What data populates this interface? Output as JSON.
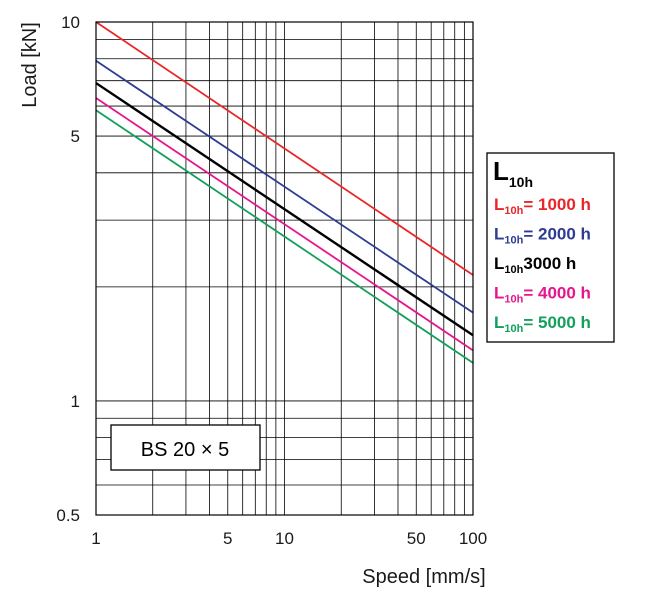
{
  "chart_data": {
    "type": "line",
    "xlabel": "Speed [mm/s]",
    "ylabel": "Load [kN]",
    "x_scale": "log",
    "y_scale": "log",
    "xlim": [
      1,
      100
    ],
    "ylim": [
      0.5,
      10
    ],
    "x_ticks": [
      "1",
      "5",
      "10",
      "50",
      "100"
    ],
    "y_ticks": [
      "10",
      "5",
      "1",
      "0.5"
    ],
    "grid": true,
    "model_label": "BS 20 × 5",
    "legend": {
      "title_main": "L",
      "title_sub": "10h",
      "placement": "right",
      "entries": [
        {
          "sub": "10h",
          "text": "= 1000 h"
        },
        {
          "sub": "10h",
          "text": "= 2000 h"
        },
        {
          "sub": "10h",
          "text": "3000 h"
        },
        {
          "sub": "10h",
          "text": "= 4000 h"
        },
        {
          "sub": "10h",
          "text": "= 5000 h"
        }
      ],
      "entry_prefix": "L"
    },
    "series": [
      {
        "color": "#e8262b",
        "x": [
          1,
          100
        ],
        "y": [
          10.0,
          2.15
        ]
      },
      {
        "color": "#2e3b92",
        "x": [
          1,
          100
        ],
        "y": [
          7.9,
          1.71
        ]
      },
      {
        "color": "#000000",
        "x": [
          1,
          100
        ],
        "y": [
          6.9,
          1.49
        ]
      },
      {
        "color": "#e6158c",
        "x": [
          1,
          100
        ],
        "y": [
          6.3,
          1.36
        ]
      },
      {
        "color": "#12a05c",
        "x": [
          1,
          100
        ],
        "y": [
          5.85,
          1.26
        ]
      }
    ]
  }
}
